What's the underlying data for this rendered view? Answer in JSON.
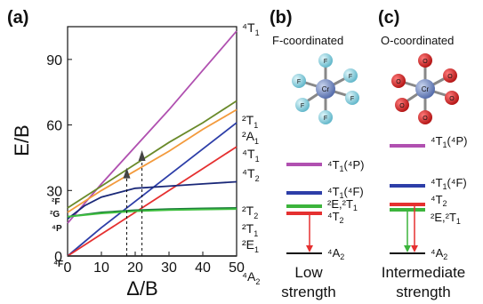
{
  "panels": {
    "a": {
      "label": "(a)",
      "ylabel": "E/B",
      "xlabel": "Δ/B",
      "left_terms": [
        "²F",
        "²G",
        "⁴P",
        "⁴F"
      ]
    },
    "b": {
      "label": "(b)",
      "subtitle": "F-coordinated",
      "strength_lines": [
        "Low",
        "strength"
      ],
      "levels": [
        {
          "name": "⁴T₁(⁴P)",
          "color": "#b050b0"
        },
        {
          "name": "⁴T₁(⁴F)",
          "color": "#2d3ea8"
        },
        {
          "name": "²E,²T₁",
          "color": "#3cb43c"
        },
        {
          "name": "⁴T₂",
          "color": "#e53030"
        },
        {
          "name": "⁴A₂",
          "color": "#111111"
        }
      ]
    },
    "c": {
      "label": "(c)",
      "subtitle": "O-coordinated",
      "strength_lines": [
        "Intermediate",
        "strength"
      ],
      "levels": [
        {
          "name": "⁴T₁(⁴P)",
          "color": "#b050b0"
        },
        {
          "name": "⁴T₁(⁴F)",
          "color": "#2d3ea8"
        },
        {
          "name": "⁴T₂",
          "color": "#e53030"
        },
        {
          "name": "²E,²T₁",
          "color": "#3cb43c"
        },
        {
          "name": "⁴A₂",
          "color": "#111111"
        }
      ]
    }
  },
  "octahedra": {
    "b": {
      "center_label": "Cr",
      "ligand_label": "F",
      "ligand_color": "#7cc8d8"
    },
    "c": {
      "center_label": "Cr",
      "ligand_label": "O",
      "ligand_color": "#d42020"
    }
  },
  "chart_data": {
    "type": "line",
    "title": "",
    "xlabel": "Δ/B",
    "ylabel": "E/B",
    "xlim": [
      0,
      50
    ],
    "ylim": [
      0,
      105
    ],
    "xticks": [
      0,
      10,
      20,
      30,
      40,
      50
    ],
    "yticks": [
      0,
      30,
      60,
      90
    ],
    "series": [
      {
        "name": "⁴T₁",
        "color": "#b050b0",
        "x": [
          0,
          10,
          20,
          30,
          40,
          50
        ],
        "y": [
          15,
          33,
          50,
          67,
          85,
          103
        ]
      },
      {
        "name": "²T₁",
        "color": "#6a8a2a",
        "x": [
          0,
          10,
          20,
          30,
          40,
          50
        ],
        "y": [
          22,
          32,
          42,
          52,
          61,
          71
        ]
      },
      {
        "name": "²A₁",
        "color": "#f39a3c",
        "x": [
          0,
          10,
          20,
          30,
          40,
          50
        ],
        "y": [
          20,
          30,
          39,
          48,
          58,
          67
        ]
      },
      {
        "name": "⁴T₁",
        "color": "#2d3ea8",
        "x": [
          0,
          10,
          20,
          30,
          40,
          50
        ],
        "y": [
          0,
          13,
          25,
          37,
          49,
          61
        ]
      },
      {
        "name": "⁴T₂",
        "color": "#e53030",
        "x": [
          0,
          10,
          20,
          30,
          40,
          50
        ],
        "y": [
          0,
          10,
          20,
          30,
          40,
          50
        ]
      },
      {
        "name": "²T₂",
        "color": "#1a2878",
        "x": [
          0,
          5,
          10,
          20,
          30,
          40,
          50
        ],
        "y": [
          17,
          23,
          27,
          31,
          32,
          33,
          34
        ]
      },
      {
        "name": "²T₁",
        "color": "#1a7a3a",
        "x": [
          0,
          10,
          20,
          30,
          40,
          50
        ],
        "y": [
          18,
          20,
          21,
          21.5,
          21.8,
          22
        ]
      },
      {
        "name": "²E",
        "color": "#40c040",
        "x": [
          0,
          10,
          20,
          30,
          40,
          50
        ],
        "y": [
          18,
          19.5,
          20.5,
          21,
          21.3,
          21.5
        ]
      },
      {
        "name": "⁴A₂",
        "color": "#333333",
        "x": [
          0,
          50
        ],
        "y": [
          0,
          0
        ]
      }
    ],
    "markers": [
      {
        "x": 17.5,
        "y_from": 0,
        "y_to": 38
      },
      {
        "x": 22,
        "y_from": 0,
        "y_to": 46
      }
    ]
  }
}
